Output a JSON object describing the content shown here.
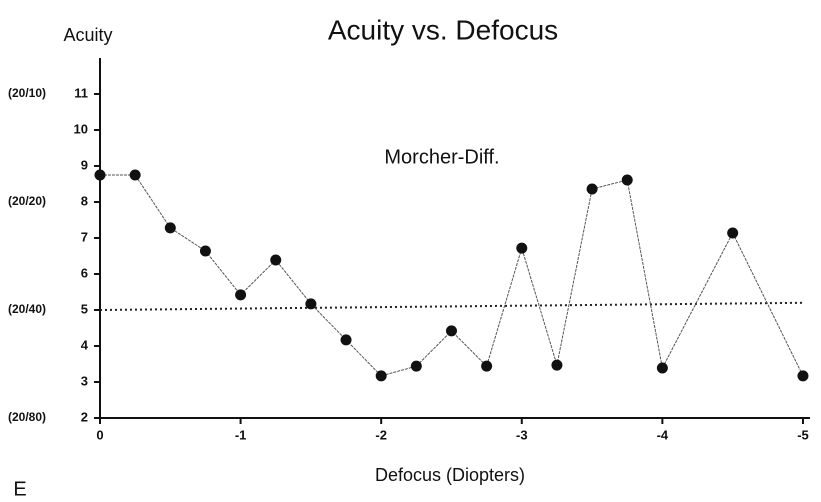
{
  "chart_data": {
    "type": "line",
    "title": "Acuity vs. Defocus",
    "y_label": "Acuity",
    "x_label": "Defocus (Diopters)",
    "annotation": "Morcher-Diff.",
    "panel_label": "E",
    "x": [
      0,
      -0.25,
      -0.5,
      -0.75,
      -1,
      -1.25,
      -1.5,
      -1.75,
      -2,
      -2.25,
      -2.5,
      -2.75,
      -3,
      -3.25,
      -3.5,
      -3.75,
      -4,
      -4.5,
      -5
    ],
    "values": [
      8.75,
      8.75,
      7.28,
      6.64,
      5.42,
      6.39,
      5.17,
      4.17,
      3.17,
      3.44,
      4.42,
      3.44,
      6.72,
      3.47,
      8.36,
      8.61,
      3.39,
      7.14,
      3.17
    ],
    "color": "#111111",
    "xlim": [
      0,
      -5.05
    ],
    "ylim": [
      2,
      12
    ],
    "xticks": [
      0,
      -1,
      -2,
      -3,
      -4,
      -5
    ],
    "yticks": [
      2,
      3,
      4,
      5,
      6,
      7,
      8,
      9,
      10,
      11
    ],
    "snellen_labels": [
      {
        "value": 11,
        "label": "(20/10)"
      },
      {
        "value": 8,
        "label": "(20/20)"
      },
      {
        "value": 5,
        "label": "(20/40)"
      },
      {
        "value": 2,
        "label": "(20/80)"
      }
    ],
    "reference_line": {
      "x": [
        0,
        -5
      ],
      "values": [
        5,
        5.2
      ]
    }
  }
}
